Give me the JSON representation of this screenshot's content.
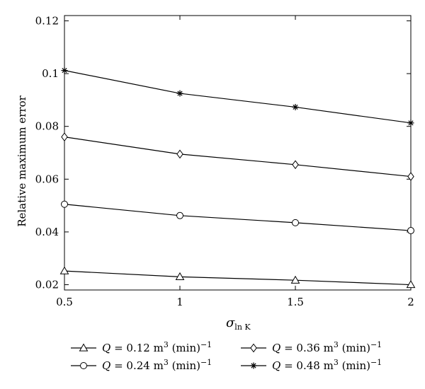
{
  "chart_data": {
    "type": "line",
    "title": "",
    "xlabel": "σ",
    "xlabel_sub": "ln K",
    "ylabel": "Relative maximum error",
    "xlim": [
      0.5,
      2
    ],
    "ylim": [
      0.018,
      0.122
    ],
    "x_ticks": [
      "0.5",
      "1",
      "1.5",
      "2"
    ],
    "y_ticks": [
      "0.02",
      "0.04",
      "0.06",
      "0.08",
      "0.1",
      "0.12"
    ],
    "grid": false,
    "legend_position": "bottom",
    "x": [
      0.5,
      1,
      1.5,
      2
    ],
    "series": [
      {
        "name": "Q = 0.12 m³ (min)⁻¹",
        "legend_prefix": "Q",
        "legend_value": " = 0.12 m",
        "legend_unit": " (min)",
        "marker": "triangle",
        "values": [
          0.0252,
          0.023,
          0.0217,
          0.02
        ]
      },
      {
        "name": "Q = 0.24 m³ (min)⁻¹",
        "legend_prefix": "Q",
        "legend_value": " = 0.24 m",
        "legend_unit": " (min)",
        "marker": "circle",
        "values": [
          0.0505,
          0.0462,
          0.0435,
          0.0405
        ]
      },
      {
        "name": "Q = 0.36 m³ (min)⁻¹",
        "legend_prefix": "Q",
        "legend_value": " = 0.36 m",
        "legend_unit": " (min)",
        "marker": "diamond",
        "values": [
          0.076,
          0.0695,
          0.0655,
          0.061
        ]
      },
      {
        "name": "Q = 0.48 m³ (min)⁻¹",
        "legend_prefix": "Q",
        "legend_value": " = 0.48 m",
        "legend_unit": " (min)",
        "marker": "star",
        "values": [
          0.1012,
          0.0925,
          0.0873,
          0.0813
        ]
      }
    ],
    "legend_sup_3": "3",
    "legend_sup_neg1": "−1"
  }
}
